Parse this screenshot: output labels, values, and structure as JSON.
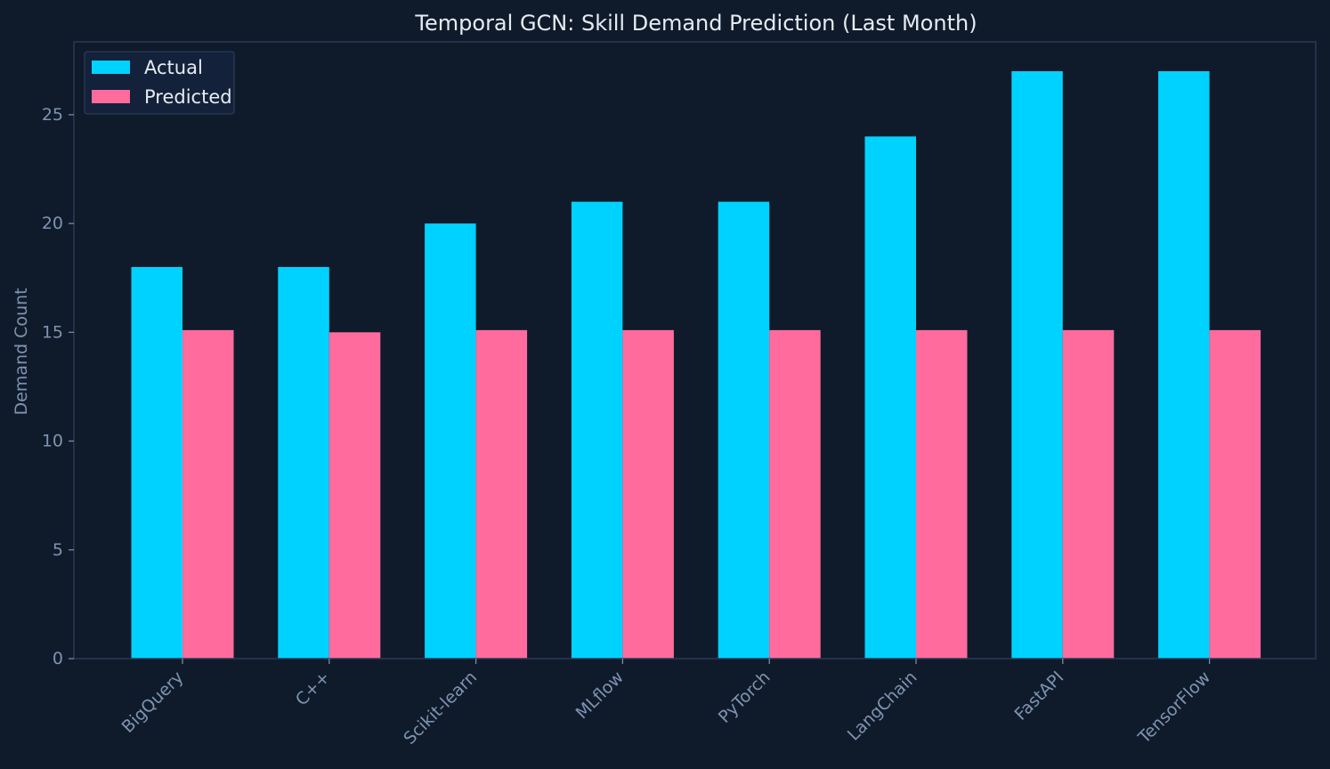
{
  "chart_data": {
    "type": "bar",
    "title": "Temporal GCN: Skill Demand Prediction (Last Month)",
    "xlabel": "",
    "ylabel": "Demand Count",
    "categories": [
      "BigQuery",
      "C++",
      "Scikit-learn",
      "MLflow",
      "PyTorch",
      "LangChain",
      "FastAPI",
      "TensorFlow"
    ],
    "series": [
      {
        "name": "Actual",
        "color": "#00d2ff",
        "values": [
          18,
          18,
          20,
          21,
          21,
          24,
          27,
          27
        ]
      },
      {
        "name": "Predicted",
        "color": "#ff6b9d",
        "values": [
          15.1,
          15.0,
          15.1,
          15.1,
          15.1,
          15.1,
          15.1,
          15.1
        ]
      }
    ],
    "yticks": [
      "0",
      "5",
      "10",
      "15",
      "20",
      "25"
    ],
    "ylim": [
      0,
      28.35
    ],
    "grid": false,
    "legend": "top-left"
  },
  "colors": {
    "background": "#0f1b2b",
    "frame": "#2a3b55",
    "legend_background": "#13223a"
  }
}
